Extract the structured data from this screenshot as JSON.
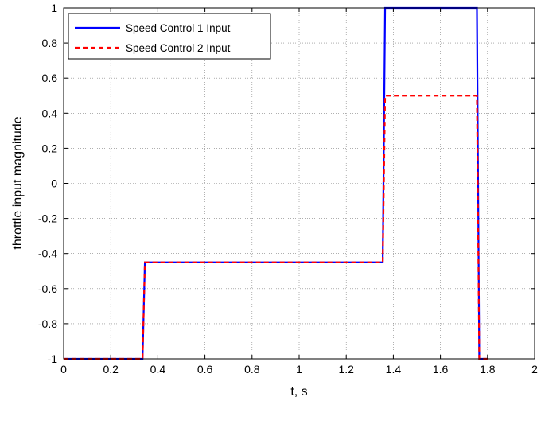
{
  "chart_data": {
    "type": "line",
    "title": "",
    "xlabel": "t, s",
    "ylabel": "throttle input magnitude",
    "xlim": [
      0,
      2
    ],
    "ylim": [
      -1,
      1
    ],
    "xticks": [
      0,
      0.2,
      0.4,
      0.6,
      0.8,
      1,
      1.2,
      1.4,
      1.6,
      1.8,
      2
    ],
    "xtick_labels": [
      "0",
      "0.2",
      "0.4",
      "0.6",
      "0.8",
      "1",
      "1.2",
      "1.4",
      "1.6",
      "1.8",
      "2"
    ],
    "yticks": [
      -1,
      -0.8,
      -0.6,
      -0.4,
      -0.2,
      0,
      0.2,
      0.4,
      0.6,
      0.8,
      1
    ],
    "ytick_labels": [
      "-1",
      "-0.8",
      "-0.6",
      "-0.4",
      "-0.2",
      "0",
      "0.2",
      "0.4",
      "0.6",
      "0.8",
      "1"
    ],
    "grid": true,
    "legend_position": "top-left",
    "series": [
      {
        "name": "Speed Control 1 Input",
        "color": "#0000ff",
        "style": "solid",
        "x": [
          0,
          0.335,
          0.345,
          1.355,
          1.365,
          1.755,
          1.765,
          1.8
        ],
        "y": [
          -1,
          -1,
          -0.45,
          -0.45,
          1,
          1,
          -1,
          -1
        ]
      },
      {
        "name": "Speed Control 2 Input",
        "color": "#ff0000",
        "style": "dashed",
        "x": [
          0,
          0.335,
          0.345,
          1.355,
          1.365,
          1.755,
          1.765,
          1.8
        ],
        "y": [
          -1,
          -1,
          -0.45,
          -0.45,
          0.5,
          0.5,
          -1,
          -1
        ]
      }
    ]
  }
}
